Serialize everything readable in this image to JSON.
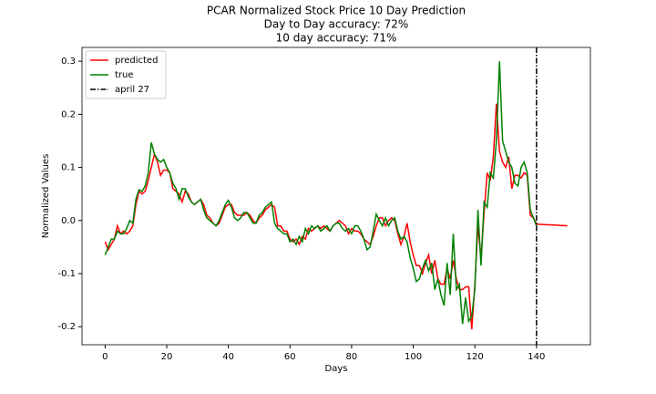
{
  "chart_data": {
    "type": "line",
    "title": [
      "PCAR Normalized Stock Price 10 Day Prediction",
      "Day to Day accuracy: 72%",
      "10 day accuracy: 71%"
    ],
    "xlabel": "Days",
    "ylabel": "Normalized Values",
    "x": [
      0,
      1,
      2,
      3,
      4,
      5,
      6,
      7,
      8,
      9,
      10,
      11,
      12,
      13,
      14,
      15,
      16,
      17,
      18,
      19,
      20,
      21,
      22,
      23,
      24,
      25,
      26,
      27,
      28,
      29,
      30,
      31,
      32,
      33,
      34,
      35,
      36,
      37,
      38,
      39,
      40,
      41,
      42,
      43,
      44,
      45,
      46,
      47,
      48,
      49,
      50,
      51,
      52,
      53,
      54,
      55,
      56,
      57,
      58,
      59,
      60,
      61,
      62,
      63,
      64,
      65,
      66,
      67,
      68,
      69,
      70,
      71,
      72,
      73,
      74,
      75,
      76,
      77,
      78,
      79,
      80,
      81,
      82,
      83,
      84,
      85,
      86,
      87,
      88,
      89,
      90,
      91,
      92,
      93,
      94,
      95,
      96,
      97,
      98,
      99,
      100,
      101,
      102,
      103,
      104,
      105,
      106,
      107,
      108,
      109,
      110,
      111,
      112,
      113,
      114,
      115,
      116,
      117,
      118,
      119,
      120,
      121,
      122,
      123,
      124,
      125,
      126,
      127,
      128,
      129,
      130,
      131,
      132,
      133,
      134,
      135,
      136,
      137,
      138,
      139,
      140,
      141,
      142,
      143,
      144,
      145,
      146,
      147,
      148,
      149,
      150
    ],
    "series": [
      {
        "name": "predicted",
        "color": "#ff0000",
        "values": [
          -0.04,
          -0.055,
          -0.045,
          -0.035,
          -0.01,
          -0.025,
          -0.02,
          -0.025,
          -0.02,
          -0.01,
          0.03,
          0.055,
          0.05,
          0.055,
          0.075,
          0.1,
          0.125,
          0.11,
          0.085,
          0.095,
          0.095,
          0.09,
          0.06,
          0.055,
          0.05,
          0.035,
          0.055,
          0.05,
          0.035,
          0.03,
          0.035,
          0.04,
          0.03,
          0.01,
          0.005,
          -0.005,
          -0.01,
          -0.005,
          0.01,
          0.025,
          0.03,
          0.03,
          0.015,
          0.01,
          0.01,
          0.01,
          0.015,
          0.01,
          0.0,
          -0.005,
          0.005,
          0.01,
          0.02,
          0.025,
          0.03,
          0.025,
          -0.01,
          -0.01,
          -0.02,
          -0.02,
          -0.035,
          -0.04,
          -0.035,
          -0.045,
          -0.03,
          -0.035,
          -0.015,
          -0.02,
          -0.015,
          -0.01,
          -0.015,
          -0.01,
          -0.015,
          -0.02,
          -0.01,
          -0.005,
          0.0,
          -0.005,
          -0.01,
          -0.025,
          -0.015,
          -0.02,
          -0.02,
          -0.025,
          -0.035,
          -0.04,
          -0.045,
          -0.03,
          -0.01,
          0.005,
          0.005,
          -0.01,
          0.0,
          0.005,
          0.0,
          -0.025,
          -0.045,
          -0.03,
          -0.005,
          -0.04,
          -0.065,
          -0.085,
          -0.085,
          -0.1,
          -0.08,
          -0.065,
          -0.1,
          -0.075,
          -0.11,
          -0.12,
          -0.12,
          -0.09,
          -0.11,
          -0.075,
          -0.11,
          -0.13,
          -0.13,
          -0.125,
          -0.125,
          -0.205,
          -0.12,
          -0.01,
          -0.07,
          0.015,
          0.09,
          0.075,
          0.12,
          0.22,
          0.13,
          0.11,
          0.1,
          0.12,
          0.06,
          0.085,
          0.085,
          0.08,
          0.09,
          0.085,
          0.01,
          0.005,
          -0.007,
          -0.007,
          -0.0075,
          -0.0078,
          -0.008,
          -0.0083,
          -0.0086,
          -0.009,
          -0.0093,
          -0.0096,
          -0.01
        ]
      },
      {
        "name": "true",
        "color": "#008000",
        "values": [
          -0.065,
          -0.05,
          -0.035,
          -0.035,
          -0.02,
          -0.025,
          -0.025,
          -0.015,
          0.0,
          -0.005,
          0.04,
          0.058,
          0.055,
          0.065,
          0.09,
          0.147,
          0.125,
          0.115,
          0.11,
          0.115,
          0.1,
          0.09,
          0.07,
          0.06,
          0.04,
          0.06,
          0.06,
          0.045,
          0.035,
          0.03,
          0.035,
          0.04,
          0.02,
          0.005,
          0.0,
          -0.005,
          -0.01,
          0.0,
          0.015,
          0.03,
          0.038,
          0.025,
          0.005,
          0.0,
          0.005,
          0.015,
          0.015,
          0.005,
          -0.005,
          -0.005,
          0.01,
          0.015,
          0.025,
          0.03,
          0.035,
          -0.005,
          -0.015,
          -0.02,
          -0.025,
          -0.025,
          -0.04,
          -0.035,
          -0.045,
          -0.03,
          -0.04,
          -0.015,
          -0.025,
          -0.01,
          -0.015,
          -0.01,
          -0.02,
          -0.015,
          -0.01,
          -0.02,
          -0.01,
          -0.005,
          -0.005,
          -0.015,
          -0.02,
          -0.015,
          -0.025,
          -0.01,
          -0.01,
          -0.02,
          -0.035,
          -0.055,
          -0.05,
          -0.02,
          0.012,
          0.0,
          -0.01,
          0.005,
          -0.01,
          0.0,
          0.005,
          -0.02,
          -0.035,
          -0.03,
          -0.04,
          -0.07,
          -0.09,
          -0.115,
          -0.11,
          -0.09,
          -0.075,
          -0.095,
          -0.08,
          -0.13,
          -0.11,
          -0.14,
          -0.16,
          -0.08,
          -0.14,
          -0.025,
          -0.13,
          -0.12,
          -0.195,
          -0.145,
          -0.19,
          -0.18,
          -0.13,
          0.02,
          -0.085,
          0.035,
          0.025,
          0.09,
          0.08,
          0.15,
          0.3,
          0.15,
          0.13,
          0.11,
          0.1,
          0.07,
          0.065,
          0.1,
          0.11,
          0.09,
          0.02,
          0.005,
          -0.01,
          null,
          null,
          null,
          null,
          null,
          null,
          null,
          null,
          null,
          null
        ]
      }
    ],
    "vlines": [
      {
        "x": 140,
        "name": "april 27",
        "color": "#000000",
        "dash": "dashdot"
      }
    ],
    "xlim": [
      -7.5,
      157.5
    ],
    "xticks": [
      0,
      20,
      40,
      60,
      80,
      100,
      120,
      140
    ],
    "ylim": [
      -0.234,
      0.326
    ],
    "yticks": [
      -0.2,
      -0.1,
      {
        "value": 0,
        "label": "0.0"
      },
      0.1,
      0.2,
      0.3
    ],
    "legend": "upper left",
    "grid": false
  }
}
